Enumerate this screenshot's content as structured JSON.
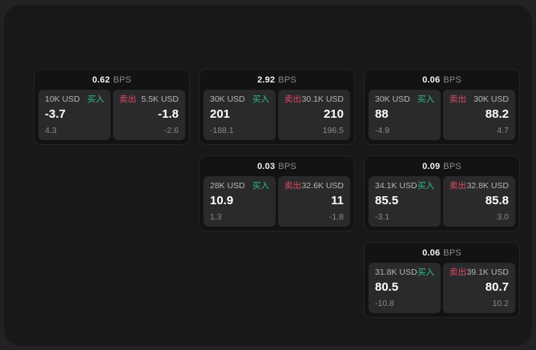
{
  "labels": {
    "buy": "买入",
    "sell": "卖出",
    "bps_suffix": "BPS"
  },
  "colors": {
    "buy_green": "#2ebd85",
    "sell_red": "#dd4a63",
    "page_bg": "#18181a",
    "card_bg": "#131315",
    "panel_bg": "#2a2a2c"
  },
  "cards": [
    {
      "bps": "0.62",
      "buy": {
        "size": "10K USD",
        "value": "-3.7",
        "delta": "4.3"
      },
      "sell": {
        "size": "5.5K USD",
        "value": "-1.8",
        "delta": "-2.6"
      }
    },
    {
      "bps": "2.92",
      "buy": {
        "size": "30K USD",
        "value": "201",
        "delta": "-188.1"
      },
      "sell": {
        "size": "30.1K USD",
        "value": "210",
        "delta": "196.5"
      }
    },
    {
      "bps": "0.06",
      "buy": {
        "size": "30K USD",
        "value": "88",
        "delta": "-4.9"
      },
      "sell": {
        "size": "30K USD",
        "value": "88.2",
        "delta": "4.7"
      }
    },
    {
      "bps": "0.03",
      "buy": {
        "size": "28K USD",
        "value": "10.9",
        "delta": "1.3"
      },
      "sell": {
        "size": "32.6K USD",
        "value": "11",
        "delta": "-1.8"
      }
    },
    {
      "bps": "0.09",
      "buy": {
        "size": "34.1K USD",
        "value": "85.5",
        "delta": "-3.1"
      },
      "sell": {
        "size": "32.8K USD",
        "value": "85.8",
        "delta": "3.0"
      }
    },
    {
      "bps": "0.06",
      "buy": {
        "size": "31.8K USD",
        "value": "80.5",
        "delta": "-10.8"
      },
      "sell": {
        "size": "39.1K USD",
        "value": "80.7",
        "delta": "10.2"
      }
    }
  ]
}
